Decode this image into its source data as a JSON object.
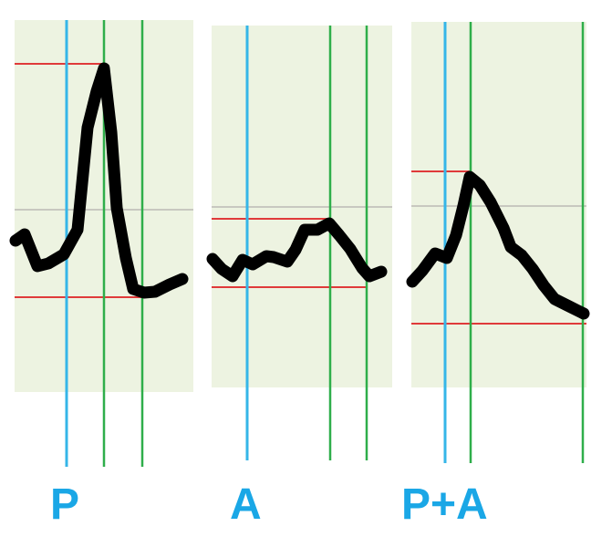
{
  "colors": {
    "panel_background": "#edf3e1",
    "midline": "#c8c8c0",
    "envelope_lines": "#e03a3a",
    "cursor_blue": "#35b6e8",
    "cursor_green": "#2fae4a",
    "trace": "#000000",
    "label": "#1aa7e6"
  },
  "panels": [
    {
      "id": "p",
      "label": "P"
    },
    {
      "id": "a",
      "label": "A"
    },
    {
      "id": "pa",
      "label": "P+A"
    }
  ]
}
